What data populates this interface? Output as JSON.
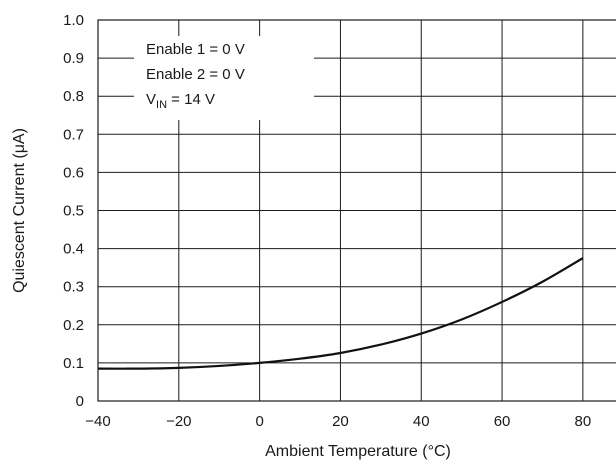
{
  "chart_data": {
    "type": "line",
    "xlabel": "Ambient Temperature (°C)",
    "ylabel": "Quiescent Current (μA)",
    "xlim": [
      -40,
      80
    ],
    "ylim": [
      0,
      1.0
    ],
    "x_ticks": [
      -40,
      -20,
      0,
      20,
      40,
      60,
      80
    ],
    "x_tick_labels": [
      "−40",
      "−20",
      "0",
      "20",
      "40",
      "60",
      "80"
    ],
    "y_ticks": [
      0,
      0.1,
      0.2,
      0.3,
      0.4,
      0.5,
      0.6,
      0.7,
      0.8,
      0.9,
      1.0
    ],
    "y_tick_labels": [
      "0",
      "0.1",
      "0.2",
      "0.3",
      "0.4",
      "0.5",
      "0.6",
      "0.7",
      "0.8",
      "0.9",
      "1.0"
    ],
    "grid": true,
    "legend": {
      "placement": "top-left",
      "lines": [
        {
          "main": "Enable 1 = 0 V",
          "sub": "",
          "rest": ""
        },
        {
          "main": "Enable 2 = 0 V",
          "sub": "",
          "rest": ""
        },
        {
          "main": "V",
          "sub": "IN",
          "rest": " = 14 V"
        }
      ]
    },
    "series": [
      {
        "x": [
          -40,
          -30,
          -20,
          -10,
          0,
          10,
          20,
          30,
          40,
          50,
          60,
          70,
          80
        ],
        "y": [
          0.085,
          0.085,
          0.087,
          0.092,
          0.1,
          0.111,
          0.126,
          0.148,
          0.177,
          0.214,
          0.26,
          0.313,
          0.375
        ]
      }
    ]
  }
}
